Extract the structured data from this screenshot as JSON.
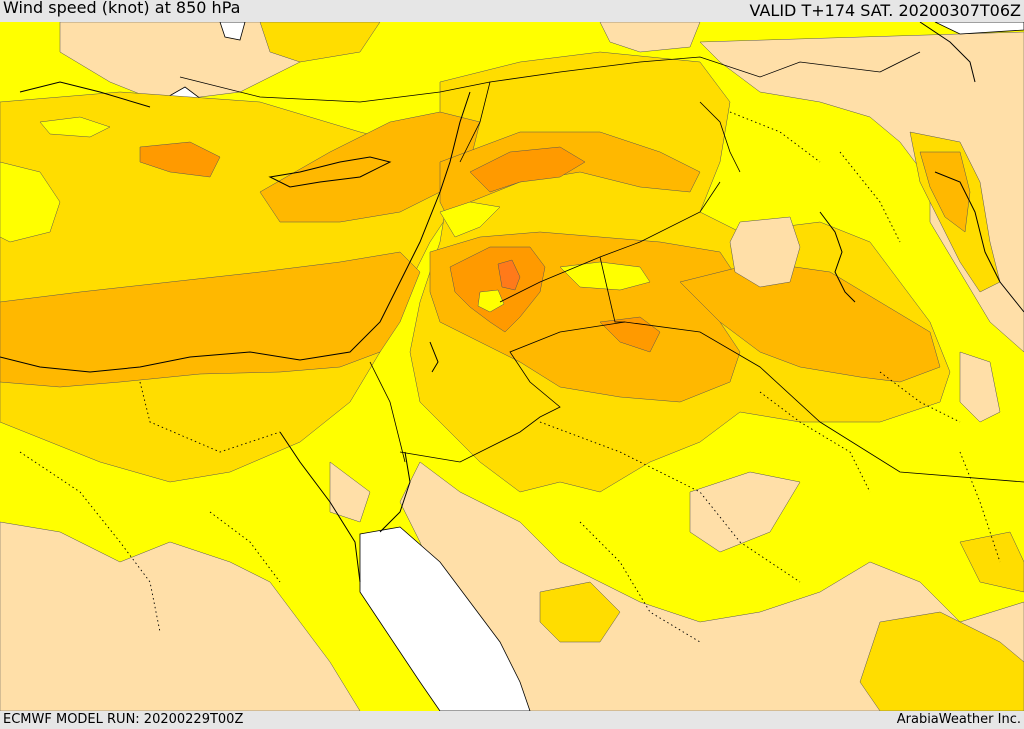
{
  "header": {
    "title": "Wind speed (knot) at 850 hPa",
    "valid": "VALID T+174 SAT. 20200307T06Z"
  },
  "footer": {
    "model_run": "ECMWF MODEL RUN: 20200229T00Z",
    "credit": "ArabiaWeather Inc."
  },
  "map": {
    "colors": {
      "light": "#ffdfa8",
      "yellow": "#ffff00",
      "gold": "#ffdd00",
      "amber": "#ffb800",
      "orange": "#ff9a00",
      "red_orange": "#ff7a1a",
      "sea": "#ffffff"
    }
  }
}
